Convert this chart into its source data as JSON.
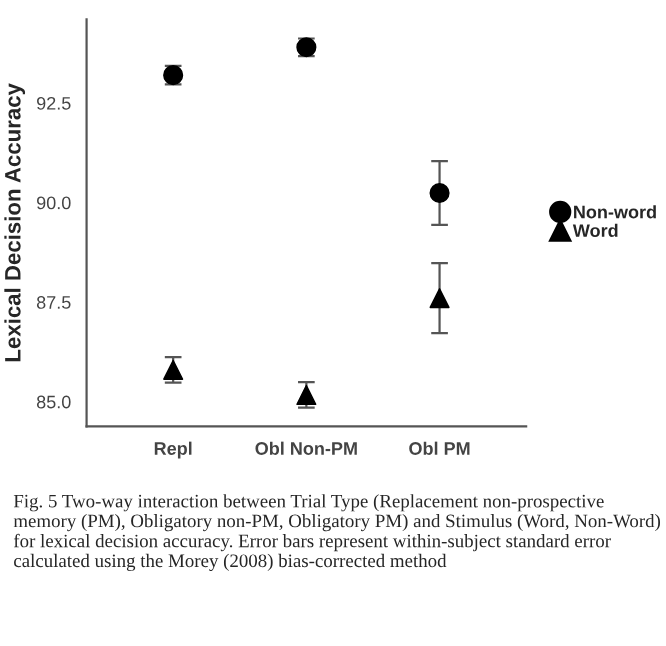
{
  "chart_data": {
    "type": "scatter",
    "ylabel": "Lexical Decision Accuracy",
    "categories": [
      "Repl",
      "Obl Non-PM",
      "Obl PM"
    ],
    "series": [
      {
        "name": "Non-word",
        "color": "#000000",
        "marker": "circle",
        "values": [
          93.2,
          93.9,
          90.24
        ],
        "errors": [
          0.23,
          0.22,
          0.8
        ]
      },
      {
        "name": "Word",
        "color": "#000000",
        "marker": "triangle",
        "values": [
          85.8,
          85.17,
          87.6
        ],
        "errors": [
          0.32,
          0.32,
          0.88
        ]
      }
    ],
    "ylim": [
      84.38,
      94.6
    ],
    "yticks": [
      {
        "value": 85,
        "label": "85.0"
      },
      87.5,
      {
        "value": 90,
        "label": "90.0"
      },
      92.5
    ],
    "grid": false,
    "legend": "right",
    "annotations": [
      "Fig. 5 Two-way interaction between Trial Type (Replacement non-prospective memory (PM), Obligatory non-PM, Obligatory PM) and Stimulus (Word, Non-Word) for lexical decision accuracy. Error bars represent within-subject standard error calculated using the Morey (2008) bias-corrected method"
    ]
  }
}
